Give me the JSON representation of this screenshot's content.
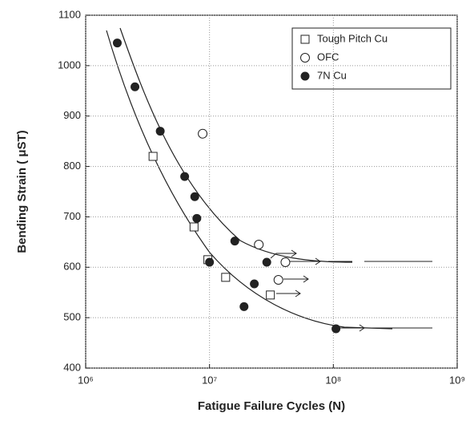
{
  "chart_data": {
    "type": "scatter",
    "x_label": "Fatigue Failure Cycles (N)",
    "y_label": "Bending Strain ( μST)",
    "xlim": [
      1000000,
      1000000000
    ],
    "x_log": true,
    "xticks": [
      {
        "value": 1000000,
        "label": "10⁶"
      },
      {
        "value": 10000000,
        "label": "10⁷"
      },
      {
        "value": 100000000,
        "label": "10⁸"
      },
      {
        "value": 1000000000,
        "label": "10⁹"
      }
    ],
    "ylim": [
      400,
      1100
    ],
    "yticks": [
      400,
      500,
      600,
      700,
      800,
      900,
      1000,
      1100
    ],
    "grid": true,
    "legend": "upper right",
    "series": [
      {
        "name": "Tough Pitch Cu",
        "marker": "square",
        "color": "#222",
        "x": [
          3500000,
          7500000,
          9700000,
          13500000,
          31000000
        ],
        "values": [
          820,
          680,
          615,
          580,
          545
        ]
      },
      {
        "name": "OFC",
        "marker": "circle",
        "color": "#222",
        "x": [
          8800000,
          25000000,
          41000000,
          36000000
        ],
        "values": [
          865,
          645,
          610,
          575
        ]
      },
      {
        "name": "7N Cu",
        "marker": "dot",
        "color": "#222",
        "x": [
          1800000,
          2500000,
          4000000,
          6300000,
          7600000,
          7900000,
          10000000,
          16000000,
          29000000,
          23000000,
          19000000,
          105000000
        ],
        "values": [
          1045,
          958,
          870,
          780,
          740,
          697,
          610,
          652,
          610,
          567,
          522,
          478
        ]
      }
    ]
  }
}
